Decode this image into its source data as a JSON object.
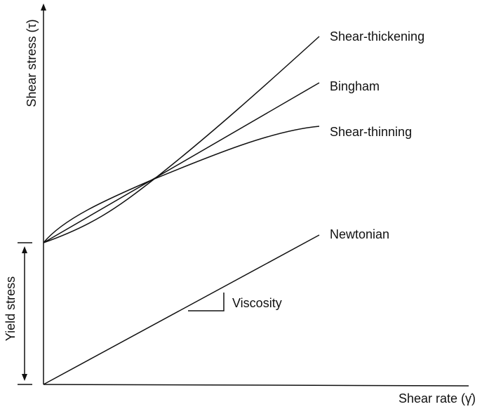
{
  "axes": {
    "y_label": "Shear stress (τ)",
    "x_label": "Shear rate (γ̇)"
  },
  "curves": [
    {
      "label": "Shear-thickening"
    },
    {
      "label": "Bingham"
    },
    {
      "label": "Shear-thinning"
    },
    {
      "label": "Newtonian"
    }
  ],
  "annotations": {
    "viscosity": "Viscosity",
    "yield_stress": "Yield stress"
  }
}
